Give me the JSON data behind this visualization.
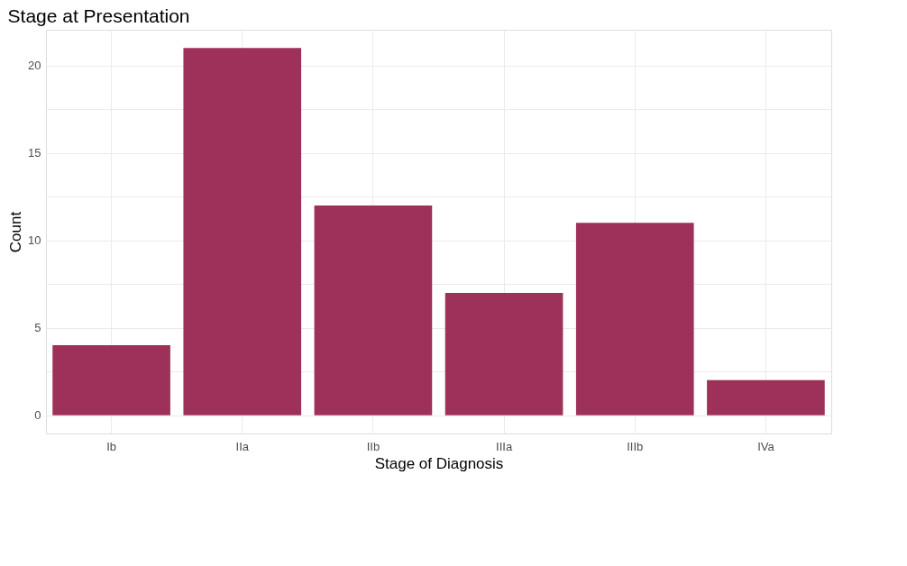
{
  "chart_data": {
    "type": "bar",
    "title": "Stage at Presentation",
    "xlabel": "Stage of Diagnosis",
    "ylabel": "Count",
    "categories": [
      "Ib",
      "IIa",
      "IIb",
      "IIIa",
      "IIIb",
      "IVa"
    ],
    "values": [
      4,
      21,
      12,
      7,
      11,
      2
    ],
    "color": "#9e3159",
    "ylim": [
      -1.05,
      22.05
    ],
    "yticks": [
      0,
      {
        "value": 2.5,
        "label": null
      },
      5,
      {
        "value": 7.5,
        "label": null
      },
      10,
      {
        "value": 12.5,
        "label": null
      },
      15,
      {
        "value": 17.5,
        "label": null
      },
      20
    ],
    "grid": true
  }
}
